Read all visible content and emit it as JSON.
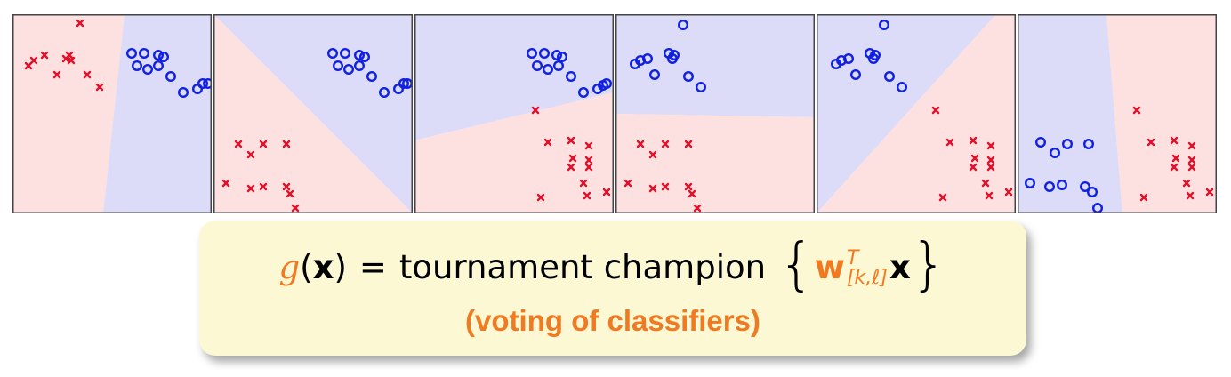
{
  "colors": {
    "red_region": "#fde0e0",
    "blue_region": "#dcdcf8",
    "cross": "#e0102a",
    "circle": "#1020e0",
    "accent": "#f07a22",
    "box_bg": "#fcf8d4"
  },
  "formula": {
    "g": "g",
    "x_open": "(",
    "x": "x",
    "x_close": ")",
    "equals": "=",
    "label": "tournament champion",
    "brace_open": "{",
    "w": "w",
    "w_sup": "T",
    "w_sub": "[k,ℓ]",
    "x2": "x",
    "brace_close": "}",
    "caption": "(voting of classifiers)"
  },
  "panels": [
    {
      "region_polys": [
        {
          "cls": "red",
          "pts": [
            [
              0,
              0
            ],
            [
              126,
              0
            ],
            [
              102,
              224
            ],
            [
              0,
              224
            ]
          ]
        },
        {
          "cls": "blue",
          "pts": [
            [
              126,
              0
            ],
            [
              224,
              0
            ],
            [
              224,
              224
            ],
            [
              102,
              224
            ]
          ]
        }
      ],
      "crosses": [
        [
          76,
          10
        ],
        [
          18,
          58
        ],
        [
          24,
          52
        ],
        [
          36,
          46
        ],
        [
          50,
          68
        ],
        [
          60,
          50
        ],
        [
          64,
          46
        ],
        [
          66,
          52
        ],
        [
          84,
          68
        ],
        [
          98,
          82
        ]
      ],
      "circles": [
        [
          134,
          44
        ],
        [
          148,
          44
        ],
        [
          164,
          46
        ],
        [
          170,
          48
        ],
        [
          140,
          58
        ],
        [
          152,
          62
        ],
        [
          164,
          58
        ],
        [
          178,
          70
        ],
        [
          192,
          88
        ],
        [
          208,
          84
        ],
        [
          214,
          78
        ],
        [
          220,
          78
        ]
      ],
      "frame_color": "#444444"
    },
    {
      "region_polys": [
        {
          "cls": "blue",
          "pts": [
            [
              0,
              0
            ],
            [
              224,
              0
            ],
            [
              224,
              224
            ]
          ]
        },
        {
          "cls": "red",
          "pts": [
            [
              0,
              0
            ],
            [
              224,
              224
            ],
            [
              0,
              224
            ]
          ]
        }
      ],
      "crosses": [
        [
          28,
          146
        ],
        [
          56,
          146
        ],
        [
          82,
          146
        ],
        [
          42,
          158
        ],
        [
          14,
          190
        ],
        [
          42,
          196
        ],
        [
          56,
          194
        ],
        [
          82,
          194
        ],
        [
          86,
          202
        ],
        [
          92,
          218
        ]
      ],
      "circles": [
        [
          134,
          44
        ],
        [
          148,
          44
        ],
        [
          164,
          46
        ],
        [
          170,
          48
        ],
        [
          140,
          58
        ],
        [
          152,
          62
        ],
        [
          164,
          58
        ],
        [
          178,
          70
        ],
        [
          192,
          88
        ],
        [
          208,
          84
        ],
        [
          214,
          78
        ],
        [
          218,
          78
        ]
      ],
      "frame_color": "#444444"
    },
    {
      "region_polys": [
        {
          "cls": "blue",
          "pts": [
            [
              0,
              0
            ],
            [
              224,
              0
            ],
            [
              224,
              88
            ],
            [
              0,
              142
            ]
          ]
        },
        {
          "cls": "red",
          "pts": [
            [
              0,
              142
            ],
            [
              224,
              88
            ],
            [
              224,
              224
            ],
            [
              0,
              224
            ]
          ]
        }
      ],
      "crosses": [
        [
          136,
          108
        ],
        [
          150,
          144
        ],
        [
          176,
          142
        ],
        [
          178,
          162
        ],
        [
          176,
          172
        ],
        [
          196,
          148
        ],
        [
          196,
          164
        ],
        [
          196,
          172
        ],
        [
          142,
          206
        ],
        [
          190,
          190
        ],
        [
          194,
          204
        ],
        [
          216,
          200
        ]
      ],
      "circles": [
        [
          132,
          44
        ],
        [
          146,
          44
        ],
        [
          160,
          46
        ],
        [
          166,
          48
        ],
        [
          138,
          58
        ],
        [
          150,
          62
        ],
        [
          162,
          58
        ],
        [
          176,
          70
        ],
        [
          190,
          88
        ],
        [
          206,
          84
        ],
        [
          212,
          80
        ],
        [
          216,
          78
        ]
      ],
      "frame_color": "#444444"
    },
    {
      "region_polys": [
        {
          "cls": "blue",
          "pts": [
            [
              0,
              0
            ],
            [
              224,
              0
            ],
            [
              224,
              116
            ],
            [
              0,
              112
            ]
          ]
        },
        {
          "cls": "red",
          "pts": [
            [
              0,
              112
            ],
            [
              224,
              116
            ],
            [
              224,
              224
            ],
            [
              0,
              224
            ]
          ]
        }
      ],
      "crosses": [
        [
          28,
          146
        ],
        [
          56,
          146
        ],
        [
          82,
          146
        ],
        [
          42,
          158
        ],
        [
          14,
          190
        ],
        [
          42,
          196
        ],
        [
          56,
          194
        ],
        [
          82,
          194
        ],
        [
          86,
          202
        ],
        [
          92,
          218
        ]
      ],
      "circles": [
        [
          76,
          12
        ],
        [
          60,
          44
        ],
        [
          64,
          50
        ],
        [
          66,
          46
        ],
        [
          22,
          56
        ],
        [
          28,
          52
        ],
        [
          36,
          50
        ],
        [
          44,
          68
        ],
        [
          82,
          70
        ],
        [
          96,
          82
        ]
      ],
      "frame_color": "#444444"
    },
    {
      "region_polys": [
        {
          "cls": "blue",
          "pts": [
            [
              0,
              0
            ],
            [
              202,
              0
            ],
            [
              0,
              224
            ]
          ]
        },
        {
          "cls": "red",
          "pts": [
            [
              202,
              0
            ],
            [
              224,
              0
            ],
            [
              224,
              224
            ],
            [
              0,
              224
            ]
          ]
        }
      ],
      "crosses": [
        [
          134,
          108
        ],
        [
          150,
          144
        ],
        [
          176,
          142
        ],
        [
          178,
          162
        ],
        [
          176,
          172
        ],
        [
          196,
          148
        ],
        [
          196,
          164
        ],
        [
          196,
          172
        ],
        [
          142,
          206
        ],
        [
          190,
          190
        ],
        [
          194,
          204
        ],
        [
          216,
          200
        ]
      ],
      "circles": [
        [
          76,
          12
        ],
        [
          60,
          44
        ],
        [
          64,
          50
        ],
        [
          66,
          46
        ],
        [
          22,
          56
        ],
        [
          28,
          52
        ],
        [
          36,
          50
        ],
        [
          44,
          68
        ],
        [
          82,
          70
        ],
        [
          96,
          82
        ]
      ],
      "frame_color": "#444444"
    },
    {
      "region_polys": [
        {
          "cls": "blue",
          "pts": [
            [
              0,
              0
            ],
            [
              100,
              0
            ],
            [
              118,
              224
            ],
            [
              0,
              224
            ]
          ]
        },
        {
          "cls": "red",
          "pts": [
            [
              100,
              0
            ],
            [
              224,
              0
            ],
            [
              224,
              224
            ],
            [
              118,
              224
            ]
          ]
        }
      ],
      "crosses": [
        [
          134,
          108
        ],
        [
          150,
          144
        ],
        [
          176,
          142
        ],
        [
          178,
          162
        ],
        [
          176,
          172
        ],
        [
          196,
          148
        ],
        [
          196,
          164
        ],
        [
          196,
          172
        ],
        [
          142,
          206
        ],
        [
          190,
          190
        ],
        [
          194,
          204
        ],
        [
          216,
          200
        ]
      ],
      "circles": [
        [
          26,
          144
        ],
        [
          42,
          156
        ],
        [
          56,
          146
        ],
        [
          80,
          146
        ],
        [
          14,
          190
        ],
        [
          36,
          194
        ],
        [
          50,
          192
        ],
        [
          76,
          194
        ],
        [
          84,
          200
        ],
        [
          90,
          218
        ]
      ],
      "frame_color": "#444444"
    }
  ]
}
